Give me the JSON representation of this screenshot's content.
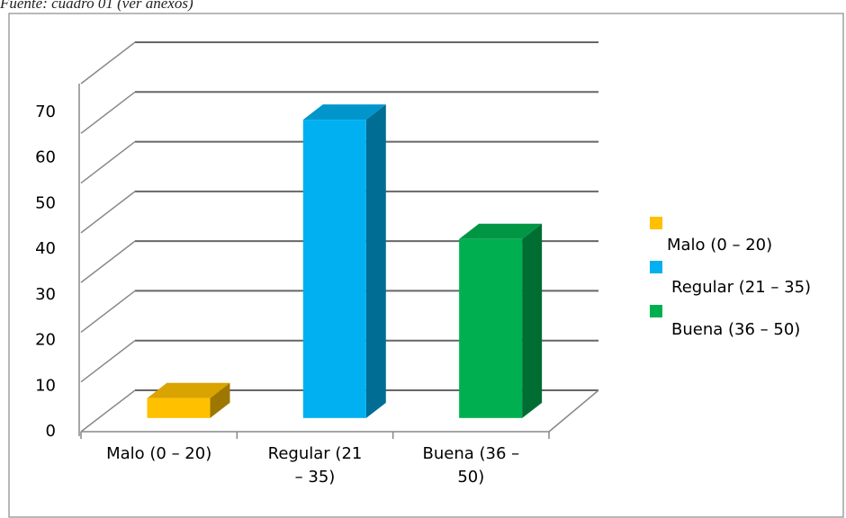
{
  "chart_data": {
    "type": "bar",
    "title": "Fuente: cuadro 01 (ver anexos)",
    "categories": [
      "Malo (0 – 20)",
      "Regular (21 – 35)",
      "Buena (36 – 50)"
    ],
    "values": [
      4,
      60,
      36
    ],
    "colors": [
      "#ffc000",
      "#00b0f0",
      "#00b050"
    ],
    "ylim": [
      0,
      70
    ],
    "yticks": [
      0,
      10,
      20,
      30,
      40,
      50,
      60,
      70
    ],
    "grid": true,
    "legend": "right"
  }
}
